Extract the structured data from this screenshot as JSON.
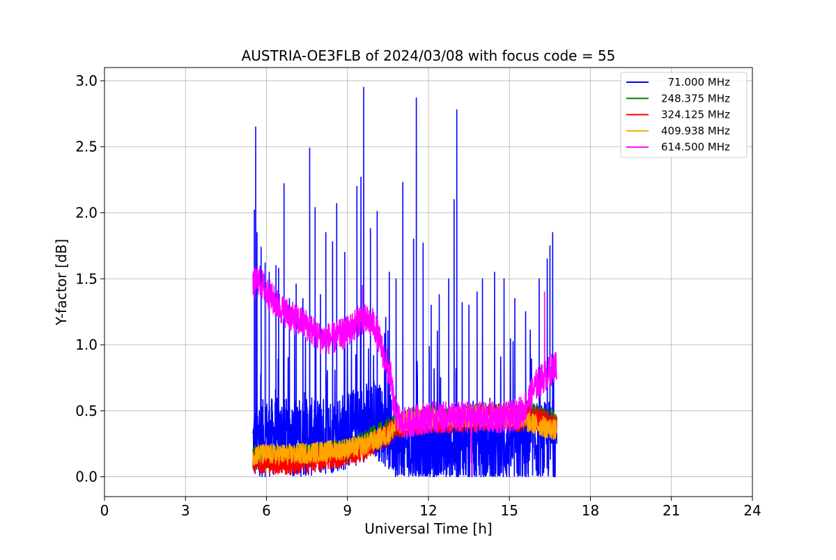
{
  "chart_data": {
    "type": "line",
    "title": "AUSTRIA-OE3FLB of 2024/03/08 with focus code = 55",
    "xlabel": "Universal Time [h]",
    "ylabel": "Y-factor [dB]",
    "xlim": [
      0,
      24
    ],
    "ylim": [
      -0.15,
      3.1
    ],
    "x_ticks": [
      0,
      3,
      6,
      9,
      12,
      15,
      18,
      21,
      24
    ],
    "x_tick_labels": [
      "0",
      "3",
      "6",
      "9",
      "12",
      "15",
      "18",
      "21",
      "24"
    ],
    "y_ticks": [
      0.0,
      0.5,
      1.0,
      1.5,
      2.0,
      2.5,
      3.0
    ],
    "y_tick_labels": [
      "0.0",
      "0.5",
      "1.0",
      "1.5",
      "2.0",
      "2.5",
      "3.0"
    ],
    "grid": true,
    "legend_position": "top-right",
    "x_range_of_data": [
      5.5,
      16.75
    ],
    "series": [
      {
        "name": "  71.000 MHz",
        "color": "#0000ff",
        "baseline": [
          [
            5.5,
            0.25
          ],
          [
            6.0,
            0.3
          ],
          [
            7.0,
            0.3
          ],
          [
            8.0,
            0.3
          ],
          [
            9.0,
            0.35
          ],
          [
            10.0,
            0.45
          ],
          [
            10.5,
            0.35
          ],
          [
            11.0,
            0.2
          ],
          [
            12.0,
            0.2
          ],
          [
            13.0,
            0.25
          ],
          [
            14.0,
            0.25
          ],
          [
            15.0,
            0.25
          ],
          [
            16.0,
            0.25
          ],
          [
            16.75,
            0.3
          ]
        ],
        "noise": 0.3,
        "spikes": [
          [
            5.55,
            2.02
          ],
          [
            5.6,
            2.65
          ],
          [
            5.65,
            1.85
          ],
          [
            5.8,
            1.74
          ],
          [
            5.95,
            1.62
          ],
          [
            6.1,
            1.55
          ],
          [
            6.35,
            1.6
          ],
          [
            6.45,
            1.58
          ],
          [
            6.65,
            2.22
          ],
          [
            6.85,
            1.35
          ],
          [
            7.1,
            1.46
          ],
          [
            7.35,
            1.35
          ],
          [
            7.6,
            2.49
          ],
          [
            7.8,
            2.04
          ],
          [
            8.0,
            1.38
          ],
          [
            8.2,
            1.85
          ],
          [
            8.45,
            1.78
          ],
          [
            8.6,
            2.07
          ],
          [
            8.9,
            1.7
          ],
          [
            9.35,
            2.2
          ],
          [
            9.5,
            2.27
          ],
          [
            9.6,
            2.95
          ],
          [
            9.85,
            1.88
          ],
          [
            10.1,
            2.01
          ],
          [
            10.55,
            1.55
          ],
          [
            10.8,
            1.5
          ],
          [
            11.05,
            2.23
          ],
          [
            11.45,
            1.8
          ],
          [
            11.55,
            2.87
          ],
          [
            11.8,
            1.77
          ],
          [
            12.1,
            1.3
          ],
          [
            12.4,
            1.38
          ],
          [
            12.75,
            1.5
          ],
          [
            12.95,
            2.1
          ],
          [
            13.05,
            2.78
          ],
          [
            13.25,
            1.32
          ],
          [
            13.5,
            1.3
          ],
          [
            13.8,
            1.4
          ],
          [
            14.0,
            1.5
          ],
          [
            14.45,
            1.55
          ],
          [
            14.8,
            1.5
          ],
          [
            15.2,
            1.35
          ],
          [
            15.6,
            1.25
          ],
          [
            16.1,
            1.5
          ],
          [
            16.4,
            1.65
          ],
          [
            16.5,
            1.75
          ],
          [
            16.6,
            1.85
          ]
        ]
      },
      {
        "name": "248.375 MHz",
        "color": "#008000",
        "baseline": [
          [
            5.5,
            0.15
          ],
          [
            7.0,
            0.15
          ],
          [
            9.0,
            0.2
          ],
          [
            10.0,
            0.3
          ],
          [
            10.75,
            0.38
          ],
          [
            11.0,
            0.42
          ],
          [
            12.0,
            0.45
          ],
          [
            13.0,
            0.45
          ],
          [
            14.0,
            0.47
          ],
          [
            15.0,
            0.47
          ],
          [
            15.5,
            0.45
          ],
          [
            15.6,
            0.5
          ],
          [
            16.75,
            0.4
          ]
        ],
        "noise": 0.09,
        "spikes": []
      },
      {
        "name": "324.125 MHz",
        "color": "#ff0000",
        "baseline": [
          [
            5.5,
            0.12
          ],
          [
            7.0,
            0.1
          ],
          [
            8.5,
            0.15
          ],
          [
            9.5,
            0.2
          ],
          [
            10.5,
            0.32
          ],
          [
            10.75,
            0.38
          ],
          [
            12.0,
            0.42
          ],
          [
            13.0,
            0.42
          ],
          [
            14.0,
            0.44
          ],
          [
            15.0,
            0.45
          ],
          [
            15.5,
            0.42
          ],
          [
            15.6,
            0.48
          ],
          [
            16.75,
            0.38
          ]
        ],
        "noise": 0.09,
        "spikes": []
      },
      {
        "name": "409.938 MHz",
        "color": "#ffa500",
        "baseline": [
          [
            5.5,
            0.17
          ],
          [
            7.0,
            0.17
          ],
          [
            8.5,
            0.2
          ],
          [
            9.5,
            0.23
          ],
          [
            10.5,
            0.32
          ],
          [
            10.75,
            0.38
          ],
          [
            11.0,
            0.42
          ],
          [
            12.0,
            0.44
          ],
          [
            13.0,
            0.45
          ],
          [
            14.0,
            0.46
          ],
          [
            15.0,
            0.46
          ],
          [
            15.5,
            0.45
          ],
          [
            15.6,
            0.42
          ],
          [
            16.75,
            0.35
          ]
        ],
        "noise": 0.08,
        "spikes": []
      },
      {
        "name": "614.500 MHz",
        "color": "#ff00ff",
        "baseline": [
          [
            5.5,
            1.45
          ],
          [
            5.7,
            1.5
          ],
          [
            6.0,
            1.4
          ],
          [
            6.5,
            1.28
          ],
          [
            7.0,
            1.2
          ],
          [
            7.5,
            1.15
          ],
          [
            8.0,
            1.05
          ],
          [
            8.5,
            1.05
          ],
          [
            9.0,
            1.1
          ],
          [
            9.5,
            1.2
          ],
          [
            10.0,
            1.15
          ],
          [
            10.3,
            0.95
          ],
          [
            10.6,
            0.75
          ],
          [
            10.75,
            0.5
          ],
          [
            11.0,
            0.4
          ],
          [
            12.0,
            0.45
          ],
          [
            13.0,
            0.45
          ],
          [
            14.0,
            0.45
          ],
          [
            15.0,
            0.45
          ],
          [
            15.5,
            0.5
          ],
          [
            16.0,
            0.7
          ],
          [
            16.75,
            0.85
          ]
        ],
        "noise": 0.12,
        "spikes": [
          [
            9.55,
            1.45
          ],
          [
            13.6,
            0.01
          ],
          [
            16.3,
            1.4
          ]
        ]
      }
    ]
  }
}
